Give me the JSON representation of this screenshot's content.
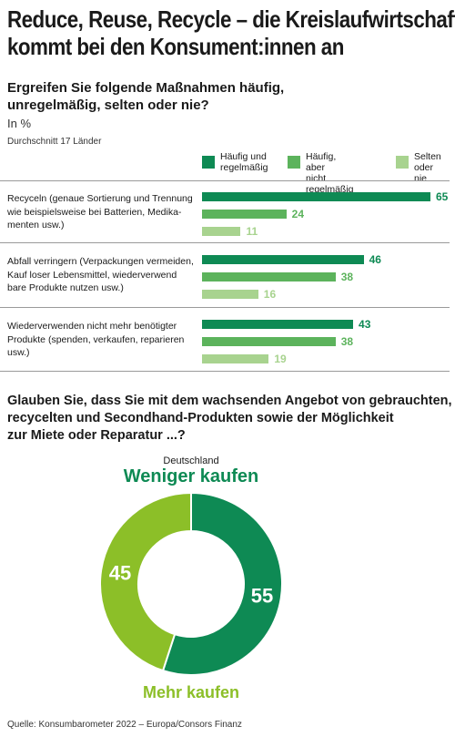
{
  "title": [
    "Reduce, Reuse, Recycle – die Kreislaufwirtschaft",
    "kommt bei den Konsument:innen an"
  ],
  "question1": [
    "Ergreifen Sie folgende Maßnahmen häufig,",
    "unregelmäßig, selten oder nie?"
  ],
  "unit": "In %",
  "sample": "Durchschnitt 17 Länder",
  "question2": [
    "Glauben Sie, dass Sie mit dem wachsenden Angebot von gebrauchten,",
    "recycelten und Secondhand-Produkten sowie der Möglichkeit",
    "zur Miete oder Reparatur ...?"
  ],
  "source": "Quelle: Konsumbarometer 2022 – Europa/Consors Finanz",
  "colors": {
    "dark": "#0e8a54",
    "mid": "#5cb35c",
    "light": "#a8d38f",
    "lime": "#8cbf28"
  },
  "chart_data": [
    {
      "type": "bar",
      "orientation": "horizontal",
      "legend_placement": "top-right",
      "categories": [
        [
          "Recyceln (genaue Sortierung und Trennung",
          "wie beispielsweise bei Batterien, Medika-",
          "menten usw.)"
        ],
        [
          "Abfall verringern (Verpackungen vermeiden,",
          "Kauf loser Lebensmittel, wiederverwend",
          "bare Produkte nutzen usw.)"
        ],
        [
          "Wiederverwenden nicht mehr benötigter",
          "Produkte (spenden, verkaufen, reparieren",
          "usw.)"
        ]
      ],
      "series": [
        {
          "name": "Häufig und\nregelmäßig",
          "values": [
            65,
            46,
            43
          ]
        },
        {
          "name": "Häufig, aber\nnicht regelmäßig",
          "values": [
            24,
            38,
            38
          ]
        },
        {
          "name": "Selten\noder nie",
          "values": [
            11,
            16,
            19
          ]
        }
      ],
      "xlim": [
        0,
        65
      ]
    },
    {
      "type": "pie",
      "subtitle": "Deutschland",
      "labels": [
        "Weniger kaufen",
        "Mehr kaufen"
      ],
      "values": [
        55,
        45
      ]
    }
  ]
}
